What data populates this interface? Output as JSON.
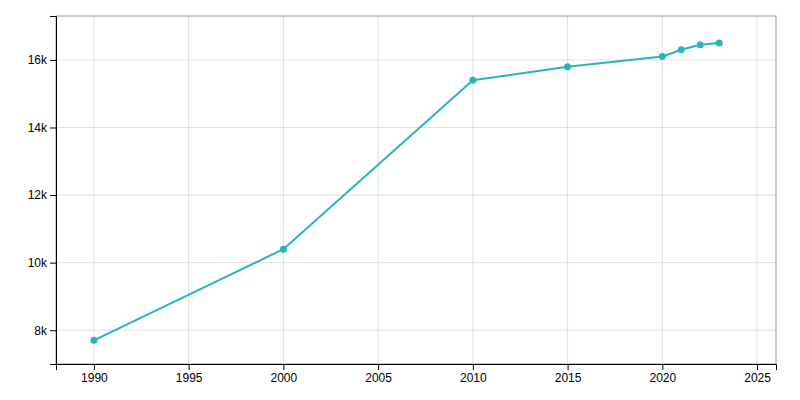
{
  "chart_data": {
    "type": "line",
    "x": [
      1990,
      2000,
      2010,
      2015,
      2020,
      2021,
      2022,
      2023
    ],
    "values": [
      7700,
      10400,
      15400,
      15800,
      16100,
      16300,
      16450,
      16500
    ],
    "color": "#2ab5b5",
    "marker": "circle",
    "xlim": [
      1988,
      2026
    ],
    "ylim": [
      7000,
      17300
    ],
    "xticks": [
      1990,
      1995,
      2000,
      2005,
      2010,
      2015,
      2020,
      2025
    ],
    "yticks": [
      {
        "value": 8000,
        "label": "8k"
      },
      {
        "value": 10000,
        "label": "10k"
      },
      {
        "value": 12000,
        "label": "12k"
      },
      {
        "value": 14000,
        "label": "14k"
      },
      {
        "value": 16000,
        "label": "16k"
      }
    ],
    "grid": true
  }
}
